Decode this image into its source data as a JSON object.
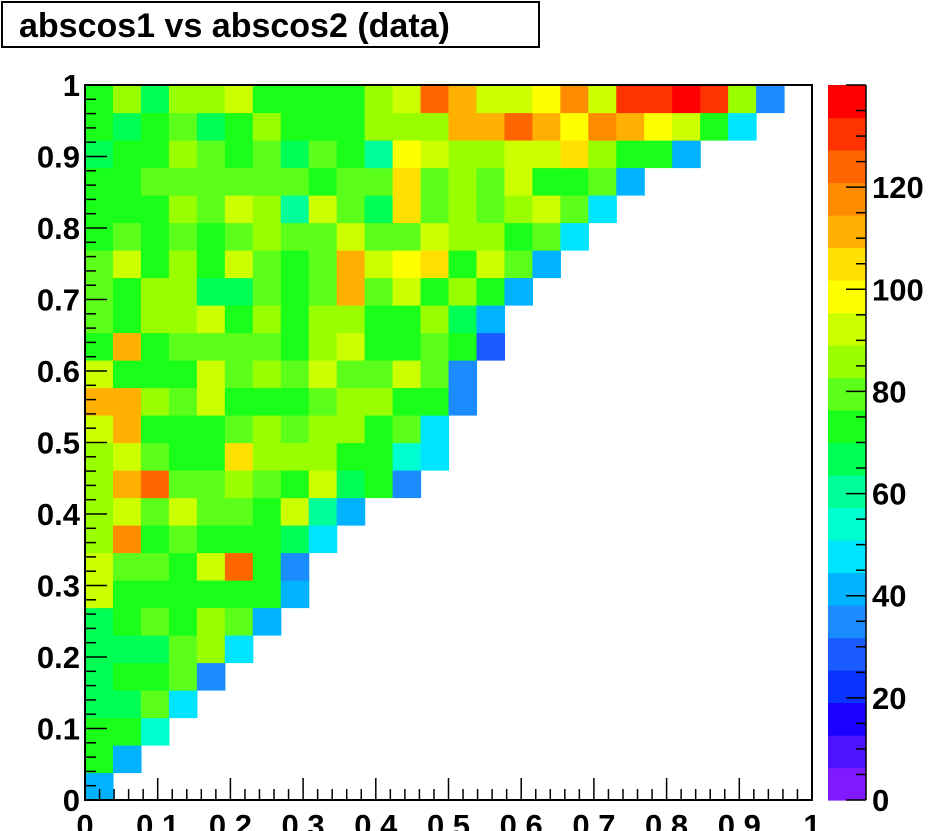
{
  "chart_data": {
    "type": "heatmap",
    "title": "abscos1 vs abscos2 (data)",
    "xlim": [
      0,
      1
    ],
    "ylim": [
      0,
      1
    ],
    "nbins": 26,
    "xticks": [
      "0",
      "0.1",
      "0.2",
      "0.3",
      "0.4",
      "0.5",
      "0.6",
      "0.7",
      "0.8",
      "0.9",
      "1"
    ],
    "yticks": [
      "0",
      "0.1",
      "0.2",
      "0.3",
      "0.4",
      "0.5",
      "0.6",
      "0.7",
      "0.8",
      "0.9",
      "1"
    ],
    "colorbar": {
      "range": [
        0,
        140
      ],
      "ticks": [
        "0",
        "20",
        "40",
        "60",
        "80",
        "100",
        "120"
      ],
      "tick_values": [
        0,
        20,
        40,
        60,
        80,
        100,
        120
      ],
      "palette": [
        "#7f1aff",
        "#4c13ff",
        "#1900ff",
        "#0a33ff",
        "#1a5cff",
        "#1a8cff",
        "#00b2ff",
        "#00e5ff",
        "#00ffd0",
        "#00ff99",
        "#00ff55",
        "#1aff1a",
        "#5cff1a",
        "#99ff00",
        "#ccff00",
        "#ffff00",
        "#ffe000",
        "#ffb000",
        "#ff8c00",
        "#ff6600",
        "#ff3300",
        "#ff0000"
      ],
      "grid": "off"
    },
    "rows_bottom_to_top": [
      [
        40
      ],
      [
        70,
        40
      ],
      [
        72,
        72,
        55
      ],
      [
        68,
        68,
        80,
        48
      ],
      [
        68,
        72,
        72,
        80,
        35
      ],
      [
        66,
        68,
        68,
        77,
        85,
        45
      ],
      [
        68,
        70,
        78,
        73,
        84,
        78,
        40
      ],
      [
        95,
        75,
        75,
        75,
        75,
        75,
        75,
        40
      ],
      [
        95,
        78,
        78,
        75,
        95,
        127,
        73,
        35
      ],
      [
        84,
        120,
        75,
        80,
        70,
        75,
        75,
        65,
        48
      ],
      [
        84,
        90,
        80,
        90,
        77,
        77,
        75,
        92,
        60,
        40
      ],
      [
        84,
        110,
        127,
        82,
        82,
        86,
        82,
        75,
        95,
        65,
        75,
        33
      ],
      [
        86,
        95,
        80,
        72,
        72,
        102,
        84,
        86,
        84,
        76,
        70,
        55,
        48
      ],
      [
        90,
        110,
        75,
        75,
        70,
        80,
        85,
        78,
        85,
        84,
        73,
        82,
        48
      ],
      [
        112,
        112,
        87,
        80,
        92,
        75,
        75,
        75,
        82,
        86,
        86,
        75,
        70,
        33
      ],
      [
        95,
        75,
        75,
        75,
        92,
        80,
        84,
        80,
        92,
        80,
        80,
        90,
        80,
        35
      ],
      [
        75,
        110,
        73,
        77,
        77,
        77,
        77,
        75,
        85,
        92,
        72,
        75,
        80,
        70,
        30
      ],
      [
        80,
        72,
        84,
        87,
        92,
        70,
        84,
        75,
        87,
        87,
        75,
        75,
        85,
        68,
        40
      ],
      [
        80,
        75,
        86,
        85,
        65,
        68,
        82,
        75,
        82,
        110,
        82,
        92,
        72,
        86,
        72,
        40
      ],
      [
        80,
        92,
        75,
        85,
        70,
        92,
        82,
        72,
        80,
        110,
        90,
        96,
        102,
        74,
        93,
        80,
        40
      ],
      [
        75,
        80,
        75,
        82,
        75,
        82,
        85,
        78,
        82,
        95,
        82,
        80,
        95,
        88,
        85,
        72,
        78,
        50
      ],
      [
        75,
        75,
        75,
        85,
        77,
        95,
        84,
        62,
        95,
        82,
        68,
        102,
        82,
        84,
        80,
        87,
        92,
        78,
        45
      ],
      [
        70,
        72,
        80,
        82,
        78,
        82,
        82,
        80,
        75,
        80,
        80,
        102,
        82,
        85,
        77,
        95,
        74,
        72,
        80,
        42
      ],
      [
        68,
        72,
        73,
        84,
        80,
        73,
        82,
        68,
        78,
        76,
        62,
        100,
        90,
        86,
        84,
        95,
        95,
        105,
        85,
        75,
        75,
        42
      ],
      [
        72,
        66,
        75,
        77,
        66,
        75,
        84,
        75,
        75,
        75,
        86,
        85,
        85,
        110,
        110,
        127,
        110,
        100,
        120,
        110,
        100,
        95,
        75,
        48
      ],
      [
        70,
        84,
        68,
        84,
        84,
        90,
        75,
        75,
        75,
        75,
        84,
        95,
        127,
        110,
        95,
        95,
        100,
        120,
        95,
        130,
        130,
        135,
        128,
        85,
        38
      ]
    ]
  }
}
